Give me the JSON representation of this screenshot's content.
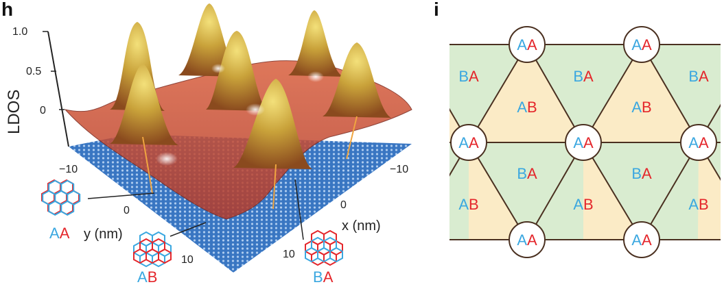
{
  "panel_h": {
    "label": "h",
    "z_axis": {
      "label": "LDOS",
      "ticks": [
        "1.0",
        "0.5",
        "0"
      ]
    },
    "y_axis": {
      "label": "y (nm)",
      "ticks": [
        "−10",
        "0",
        "10"
      ]
    },
    "x_axis": {
      "label": "x (nm)",
      "ticks": [
        "−10",
        "0",
        "10"
      ]
    },
    "insets": [
      {
        "first": "A",
        "second": "A"
      },
      {
        "first": "A",
        "second": "B"
      },
      {
        "first": "B",
        "second": "A"
      }
    ],
    "colors": {
      "surface": "#c94a30",
      "peak": "#d4b23a",
      "lattice": "#2f6fbf"
    }
  },
  "panel_i": {
    "label": "i",
    "site_label": {
      "first": "A",
      "second": "A"
    },
    "ab_label": {
      "first": "A",
      "second": "B"
    },
    "ba_label": {
      "first": "B",
      "second": "A"
    },
    "colors": {
      "ab_fill": "#fbebc6",
      "ba_fill": "#d9ecd0",
      "line": "#4a3020",
      "letter_blue": "#3aa7e0",
      "letter_red": "#e4262b"
    }
  }
}
